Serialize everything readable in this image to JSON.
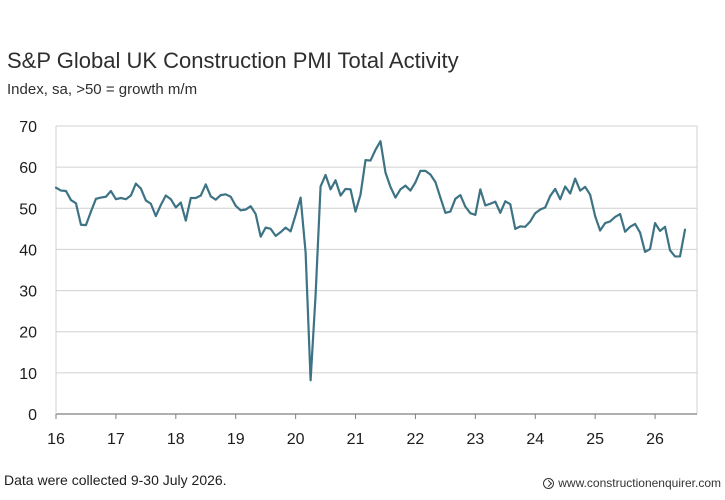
{
  "header": {
    "title": "S&P Global UK Construction PMI Total Activity",
    "subtitle": "Index, sa, >50 = growth m/m"
  },
  "footer": {
    "note": "Data were collected 9-30 July 2026.",
    "watermark": "www.constructionenquirer.com"
  },
  "colors": {
    "line": "#3d7384",
    "grid": "#d0d0d0",
    "axis": "#7f7f7f"
  },
  "chart_data": {
    "type": "line",
    "title": "S&P Global UK Construction PMI Total Activity",
    "subtitle": "Index, sa, >50 = growth m/m",
    "xlabel": "",
    "ylabel": "",
    "ylim": [
      0,
      70
    ],
    "xlim": [
      2016.0,
      2026.7
    ],
    "y_ticks": [
      "0",
      "10",
      "20",
      "30",
      "40",
      "50",
      "60",
      "70"
    ],
    "x_ticks": [
      {
        "label": "16",
        "x": 2016
      },
      {
        "label": "17",
        "x": 2017
      },
      {
        "label": "18",
        "x": 2018
      },
      {
        "label": "19",
        "x": 2019
      },
      {
        "label": "20",
        "x": 2020
      },
      {
        "label": "21",
        "x": 2021
      },
      {
        "label": "22",
        "x": 2022
      },
      {
        "label": "23",
        "x": 2023
      },
      {
        "label": "24",
        "x": 2024
      },
      {
        "label": "25",
        "x": 2025
      },
      {
        "label": "26",
        "x": 2026
      }
    ],
    "grid": true,
    "series": [
      {
        "name": "",
        "x_start": 2016.0,
        "x_step": 0.08333,
        "values": [
          55.0,
          54.3,
          54.2,
          52.0,
          51.2,
          46.0,
          45.9,
          49.2,
          52.3,
          52.6,
          52.8,
          54.2,
          52.2,
          52.5,
          52.2,
          53.1,
          56.0,
          54.8,
          51.9,
          51.1,
          48.1,
          50.8,
          53.1,
          52.2,
          50.2,
          51.4,
          47.0,
          52.5,
          52.5,
          53.1,
          55.8,
          52.9,
          52.1,
          53.2,
          53.4,
          52.8,
          50.6,
          49.5,
          49.7,
          50.5,
          48.6,
          43.1,
          45.3,
          45.0,
          43.3,
          44.2,
          45.3,
          44.4,
          48.4,
          52.6,
          39.3,
          8.2,
          28.9,
          55.3,
          58.1,
          54.6,
          56.8,
          53.1,
          54.7,
          54.6,
          49.2,
          53.3,
          61.7,
          61.6,
          64.2,
          66.3,
          58.7,
          55.2,
          52.6,
          54.6,
          55.5,
          54.3,
          56.3,
          59.1,
          59.1,
          58.2,
          56.4,
          52.6,
          48.9,
          49.2,
          52.3,
          53.2,
          50.4,
          48.8,
          48.4,
          54.6,
          50.7,
          51.1,
          51.6,
          48.9,
          51.7,
          51.0,
          45.0,
          45.6,
          45.5,
          46.8,
          48.8,
          49.7,
          50.2,
          53.0,
          54.7,
          52.2,
          55.3,
          53.6,
          57.2,
          54.3,
          55.2,
          53.3,
          48.1,
          44.6,
          46.4,
          46.8,
          47.9,
          48.6,
          44.3,
          45.5,
          46.2,
          44.1,
          39.4,
          40.1,
          46.4,
          44.5,
          45.5,
          39.8,
          38.3,
          38.3,
          44.8
        ]
      }
    ]
  }
}
